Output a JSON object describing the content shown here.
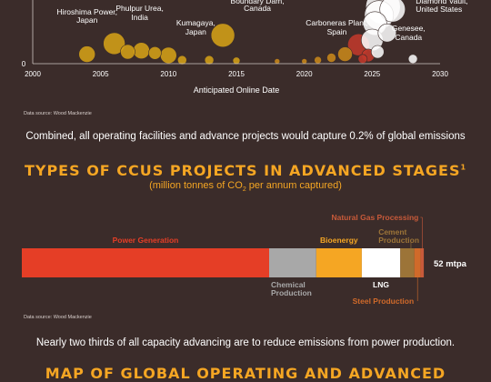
{
  "colors": {
    "background": "#3b2c2a",
    "accent": "#f5a623",
    "bubble_old": "#d4a017",
    "bubble_mid": "#c8871a",
    "bubble_recent": "#c0392b",
    "bubble_future": "#ffffff"
  },
  "chart_data": [
    {
      "type": "scatter",
      "title": "",
      "xlabel": "Anticipated Online Date",
      "ylabel": "",
      "xlim": [
        2000,
        2030
      ],
      "xticks": [
        2000,
        2005,
        2010,
        2015,
        2020,
        2025,
        2030
      ],
      "yticks": [
        0
      ],
      "grid": false,
      "annotations": [
        {
          "label": "Hiroshima Power,",
          "label2": "Japan",
          "x": 2004
        },
        {
          "label": "Phulpur Urea,",
          "label2": "India",
          "x": 2006
        },
        {
          "label": "Kumagaya,",
          "label2": "Japan",
          "x": 2010
        },
        {
          "label": "Boundary Dam,",
          "label2": "Canada",
          "x": 2014
        },
        {
          "label": "Carboneras Plant,",
          "label2": "Spain",
          "x": 2023
        },
        {
          "label": "Diamond Vault,",
          "label2": "United States",
          "x": 2027
        },
        {
          "label": "Genesee,",
          "label2": "Canada",
          "x": 2026
        }
      ],
      "points": [
        {
          "x": 2004,
          "y": 0.8,
          "size": 9,
          "color": "#d4a017"
        },
        {
          "x": 2006,
          "y": 1.7,
          "size": 12,
          "color": "#d4a017"
        },
        {
          "x": 2007,
          "y": 1.0,
          "size": 8,
          "color": "#d4a017"
        },
        {
          "x": 2008,
          "y": 1.1,
          "size": 9,
          "color": "#d4a017"
        },
        {
          "x": 2009,
          "y": 0.9,
          "size": 7,
          "color": "#d4a017"
        },
        {
          "x": 2010,
          "y": 0.7,
          "size": 9,
          "color": "#d4a017"
        },
        {
          "x": 2011,
          "y": 0.3,
          "size": 5,
          "color": "#d4a017"
        },
        {
          "x": 2013,
          "y": 0.3,
          "size": 5,
          "color": "#d4a017"
        },
        {
          "x": 2014,
          "y": 2.4,
          "size": 13,
          "color": "#d4a017"
        },
        {
          "x": 2015,
          "y": 0.25,
          "size": 4,
          "color": "#d4a017"
        },
        {
          "x": 2018,
          "y": 0.2,
          "size": 3,
          "color": "#c8871a"
        },
        {
          "x": 2020,
          "y": 0.2,
          "size": 3,
          "color": "#c8871a"
        },
        {
          "x": 2021,
          "y": 0.3,
          "size": 4,
          "color": "#c8871a"
        },
        {
          "x": 2022,
          "y": 0.5,
          "size": 5,
          "color": "#c8871a"
        },
        {
          "x": 2023,
          "y": 0.8,
          "size": 8,
          "color": "#c8871a"
        },
        {
          "x": 2024,
          "y": 1.6,
          "size": 12,
          "color": "#c0392b"
        },
        {
          "x": 2024.3,
          "y": 0.4,
          "size": 5,
          "color": "#c0392b"
        },
        {
          "x": 2024.7,
          "y": 0.7,
          "size": 7,
          "color": "#c0392b"
        },
        {
          "x": 2025,
          "y": 2.0,
          "size": 12,
          "color": "#ffffff"
        },
        {
          "x": 2025.2,
          "y": 3.4,
          "size": 13,
          "color": "#ffffff"
        },
        {
          "x": 2025.5,
          "y": 4.1,
          "size": 16,
          "color": "#ffffff"
        },
        {
          "x": 2025.8,
          "y": 4.8,
          "size": 19,
          "color": "#ffffff"
        },
        {
          "x": 2026.1,
          "y": 2.6,
          "size": 10,
          "color": "#ffffff"
        },
        {
          "x": 2025.4,
          "y": 1.0,
          "size": 7,
          "color": "#ffffff"
        },
        {
          "x": 2026.5,
          "y": 4.6,
          "size": 14,
          "color": "#ffffff"
        },
        {
          "x": 2028,
          "y": 0.4,
          "size": 5,
          "color": "#ffffff"
        }
      ]
    },
    {
      "type": "bar",
      "title": "TYPES OF CCUS PROJECTS IN ADVANCED STAGES",
      "title_suffix": "1",
      "subtitle_pre": "(million tonnes of CO",
      "subtitle_sub": "2",
      "subtitle_post": " per annum captured)",
      "orientation": "horizontal-stacked",
      "total_label": "52 mtpa",
      "total": 52,
      "segments": [
        {
          "name": "Power Generation",
          "value": 31.5,
          "color": "#e53e26"
        },
        {
          "name": "Chemical Production",
          "name_line1": "Chemical",
          "name_line2": "Production",
          "value": 6.0,
          "color": "#a8a8a8"
        },
        {
          "name": "Bioenergy",
          "value": 5.8,
          "color": "#f5a623"
        },
        {
          "name": "LNG",
          "value": 4.9,
          "color": "#ffffff"
        },
        {
          "name": "Cement Production",
          "name_line1": "Cement",
          "name_line2": "Production",
          "value": 1.8,
          "color": "#9c7438"
        },
        {
          "name": "Steel Production",
          "value": 0.8,
          "color": "#d06a2a"
        },
        {
          "name": "Natural Gas Processing",
          "value": 0.4,
          "color": "#c75a3a"
        }
      ]
    }
  ],
  "texts": {
    "source1": "Data source: Wood Mackenzie",
    "summary1": "Combined, all operating facilities and advance projects would capture 0.2% of global emissions",
    "source2": "Data source: Wood Mackenzie",
    "summary2": "Nearly two thirds of all capacity advancing are to reduce emissions from power production.",
    "next_section": "MAP OF GLOBAL OPERATING AND ADVANCED"
  }
}
